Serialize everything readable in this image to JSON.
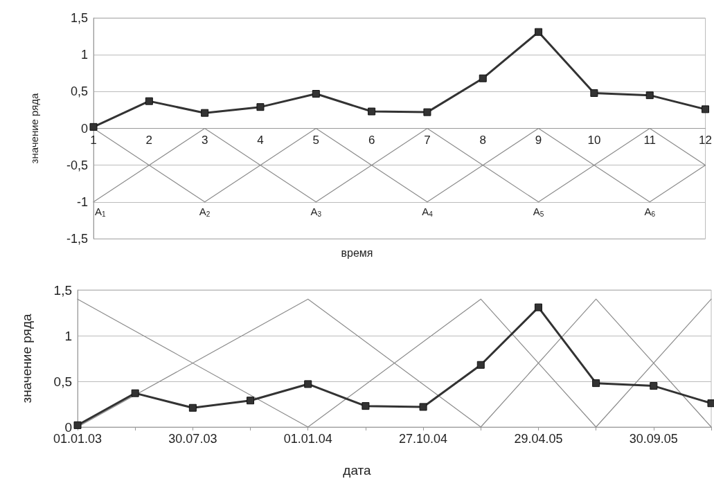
{
  "chart_data": [
    {
      "type": "line",
      "xlabel": "время",
      "ylabel": "значение ряда",
      "xlim": [
        1,
        12
      ],
      "xticks": [
        1,
        2,
        3,
        4,
        5,
        6,
        7,
        8,
        9,
        10,
        11,
        12
      ],
      "ylim": [
        -1.5,
        1.5
      ],
      "yticks": [
        {
          "value": -1.5,
          "label": "-1,5"
        },
        -1,
        {
          "value": -0.5,
          "label": "-0,5"
        },
        0,
        {
          "value": 0.5,
          "label": "0,5"
        },
        1,
        {
          "value": 1.5,
          "label": "1,5"
        }
      ],
      "grid": "y",
      "marker": "square",
      "series": [
        {
          "color": "#8c8c8c",
          "marker": "none",
          "x": [
            1,
            3,
            5,
            7,
            9,
            11,
            12
          ],
          "values": [
            0,
            -1,
            0,
            -1,
            0,
            -1,
            -0.5
          ]
        },
        {
          "color": "#8c8c8c",
          "marker": "none",
          "x": [
            1,
            3,
            5,
            7,
            9,
            11,
            12
          ],
          "values": [
            -1,
            0,
            -1,
            0,
            -1,
            0,
            -0.5
          ]
        },
        {
          "color": "#333333",
          "x": [
            1,
            2,
            3,
            4,
            5,
            6,
            7,
            8,
            9,
            10,
            11,
            12
          ],
          "values": [
            0.02,
            0.37,
            0.21,
            0.29,
            0.47,
            0.23,
            0.22,
            0.68,
            1.31,
            0.48,
            0.45,
            0.26
          ]
        }
      ],
      "annotations": [
        {
          "text": "A$_{1}$",
          "x": 1,
          "y": -1
        },
        {
          "text": "A$_{2}$",
          "x": 3,
          "y": -1
        },
        {
          "text": "A$_{3}$",
          "x": 5,
          "y": -1
        },
        {
          "text": "A$_{4}$",
          "x": 7,
          "y": -1
        },
        {
          "text": "A$_{5}$",
          "x": 9,
          "y": -1
        },
        {
          "text": "A$_{6}$",
          "x": 11,
          "y": -1
        }
      ]
    },
    {
      "type": "line",
      "xlabel": "дата",
      "ylabel": "значение ряда",
      "categories": [
        "01.01.03",
        null,
        "30.07.03",
        null,
        "01.01.04",
        null,
        "27.10.04",
        null,
        "29.04.05",
        null,
        "30.09.05",
        null
      ],
      "ylim": [
        0,
        1.5
      ],
      "yticks": [
        0,
        {
          "value": 0.5,
          "label": "0,5"
        },
        1,
        {
          "value": 1.5,
          "label": "1,5"
        }
      ],
      "grid": "y",
      "marker": "square",
      "series": [
        {
          "color": "#8c8c8c",
          "marker": "none",
          "values": [
            1.4,
            null,
            null,
            null,
            0,
            null,
            null,
            null,
            null,
            null,
            null,
            null
          ]
        },
        {
          "color": "#8c8c8c",
          "marker": "none",
          "values": [
            0,
            null,
            null,
            null,
            1.4,
            null,
            null,
            0,
            null,
            null,
            null,
            null
          ]
        },
        {
          "color": "#8c8c8c",
          "marker": "none",
          "values": [
            null,
            null,
            null,
            null,
            0,
            null,
            null,
            1.4,
            null,
            0,
            null,
            null
          ]
        },
        {
          "color": "#8c8c8c",
          "marker": "none",
          "values": [
            null,
            null,
            null,
            null,
            null,
            null,
            null,
            0,
            null,
            1.4,
            null,
            0
          ]
        },
        {
          "color": "#8c8c8c",
          "marker": "none",
          "values": [
            null,
            null,
            null,
            null,
            null,
            null,
            null,
            null,
            null,
            0,
            null,
            1.4
          ]
        },
        {
          "color": "#333333",
          "values": [
            0.02,
            0.37,
            0.21,
            0.29,
            0.47,
            0.23,
            0.22,
            0.68,
            1.31,
            0.48,
            0.45,
            0.26
          ]
        }
      ]
    }
  ]
}
